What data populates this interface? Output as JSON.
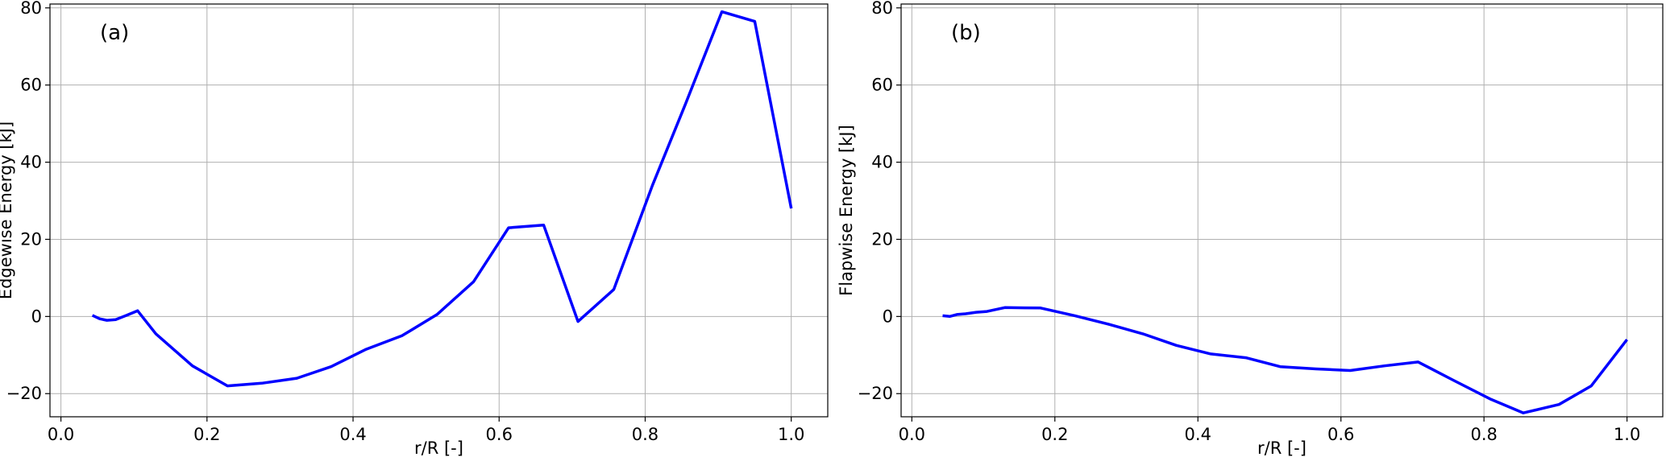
{
  "chart_data": [
    {
      "type": "line",
      "title": "",
      "annotation": "(a)",
      "xlabel": "r/R [-]",
      "ylabel": "Edgewise Energy [kJ]",
      "xlim": [
        -0.015,
        1.05
      ],
      "ylim": [
        -26,
        81
      ],
      "xticks": [
        0.0,
        0.2,
        0.4,
        0.6,
        0.8,
        1.0
      ],
      "xtick_labels": [
        "0.0",
        "0.2",
        "0.4",
        "0.6",
        "0.8",
        "1.0"
      ],
      "yticks": [
        -20,
        0,
        20,
        40,
        60,
        80
      ],
      "ytick_labels": [
        "−20",
        "0",
        "20",
        "40",
        "60",
        "80"
      ],
      "grid": true,
      "series": [
        {
          "color": "#0000ff",
          "x": [
            0.043,
            0.053,
            0.063,
            0.075,
            0.09,
            0.105,
            0.13,
            0.18,
            0.228,
            0.275,
            0.323,
            0.37,
            0.418,
            0.467,
            0.515,
            0.565,
            0.613,
            0.661,
            0.708,
            0.757,
            0.81,
            0.855,
            0.905,
            0.95,
            1.0
          ],
          "y": [
            0.3,
            -0.6,
            -1.0,
            -0.8,
            0.3,
            1.5,
            -4.5,
            -12.8,
            -18.0,
            -17.3,
            -16.0,
            -13.0,
            -8.5,
            -5.0,
            0.5,
            9.0,
            23.0,
            23.7,
            -1.3,
            7.0,
            34.0,
            55.0,
            79.0,
            76.5,
            28.0
          ]
        }
      ]
    },
    {
      "type": "line",
      "title": "",
      "annotation": "(b)",
      "xlabel": "r/R [-]",
      "ylabel": "Flapwise Energy [kJ]",
      "xlim": [
        -0.015,
        1.05
      ],
      "ylim": [
        -26,
        81
      ],
      "xticks": [
        0.0,
        0.2,
        0.4,
        0.6,
        0.8,
        1.0
      ],
      "xtick_labels": [
        "0.0",
        "0.2",
        "0.4",
        "0.6",
        "0.8",
        "1.0"
      ],
      "yticks": [
        -20,
        0,
        20,
        40,
        60,
        80
      ],
      "ytick_labels": [
        "−20",
        "0",
        "20",
        "40",
        "60",
        "80"
      ],
      "grid": true,
      "series": [
        {
          "color": "#0000ff",
          "x": [
            0.043,
            0.053,
            0.063,
            0.075,
            0.09,
            0.105,
            0.13,
            0.18,
            0.228,
            0.275,
            0.323,
            0.37,
            0.418,
            0.467,
            0.515,
            0.565,
            0.613,
            0.661,
            0.708,
            0.757,
            0.81,
            0.855,
            0.905,
            0.95,
            1.0
          ],
          "y": [
            0.2,
            0.0,
            0.5,
            0.7,
            1.1,
            1.3,
            2.3,
            2.2,
            0.2,
            -2.0,
            -4.5,
            -7.5,
            -9.7,
            -10.7,
            -13.0,
            -13.6,
            -14.0,
            -12.8,
            -11.8,
            -16.5,
            -21.5,
            -25.0,
            -22.8,
            -18.0,
            -6.0
          ]
        }
      ]
    }
  ]
}
